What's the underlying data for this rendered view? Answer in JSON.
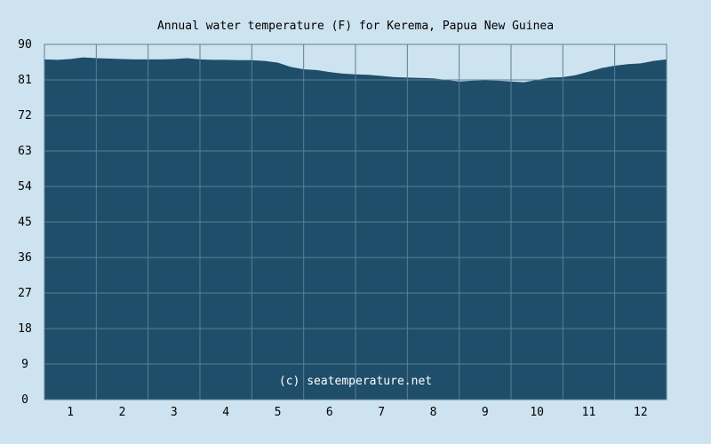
{
  "chart_data": {
    "type": "area",
    "title": "Annual water temperature (F) for Kerema, Papua New Guinea",
    "watermark": "(c) seatemperature.net",
    "xlabel": "",
    "ylabel": "",
    "ylim": [
      0,
      90
    ],
    "y_ticks": [
      0,
      9,
      18,
      27,
      36,
      45,
      54,
      63,
      72,
      81,
      90
    ],
    "categories": [
      "1",
      "2",
      "3",
      "4",
      "5",
      "6",
      "7",
      "8",
      "9",
      "10",
      "11",
      "12"
    ],
    "x": [
      0,
      0.25,
      0.5,
      0.75,
      1.0,
      1.25,
      1.5,
      1.75,
      2.0,
      2.25,
      2.5,
      2.75,
      3.0,
      3.25,
      3.5,
      3.75,
      4.0,
      4.25,
      4.5,
      4.75,
      5.0,
      5.25,
      5.5,
      5.75,
      6.0,
      6.25,
      6.5,
      6.75,
      7.0,
      7.25,
      7.5,
      7.75,
      8.0,
      8.25,
      8.5,
      8.75,
      9.0,
      9.25,
      9.5,
      9.75,
      10.0,
      10.25,
      10.5,
      10.75,
      11.0,
      11.25,
      11.5,
      11.75,
      12.0
    ],
    "values": [
      86.2,
      86.1,
      86.3,
      86.7,
      86.5,
      86.4,
      86.3,
      86.2,
      86.2,
      86.2,
      86.3,
      86.5,
      86.2,
      86.1,
      86.1,
      86.0,
      86.0,
      85.8,
      85.4,
      84.3,
      83.7,
      83.5,
      83.0,
      82.6,
      82.4,
      82.3,
      82.0,
      81.7,
      81.6,
      81.5,
      81.4,
      81.0,
      80.6,
      80.8,
      80.9,
      80.8,
      80.6,
      80.4,
      81.0,
      81.6,
      81.7,
      82.2,
      83.1,
      84.0,
      84.6,
      85.0,
      85.2,
      85.8,
      86.2
    ],
    "grid": true,
    "legend": "none",
    "colors": {
      "background": "#cde3ef",
      "fill": "#1f4e6b",
      "grid": "#5b7f96",
      "text": "#000000",
      "watermark": "#ffffff"
    }
  }
}
